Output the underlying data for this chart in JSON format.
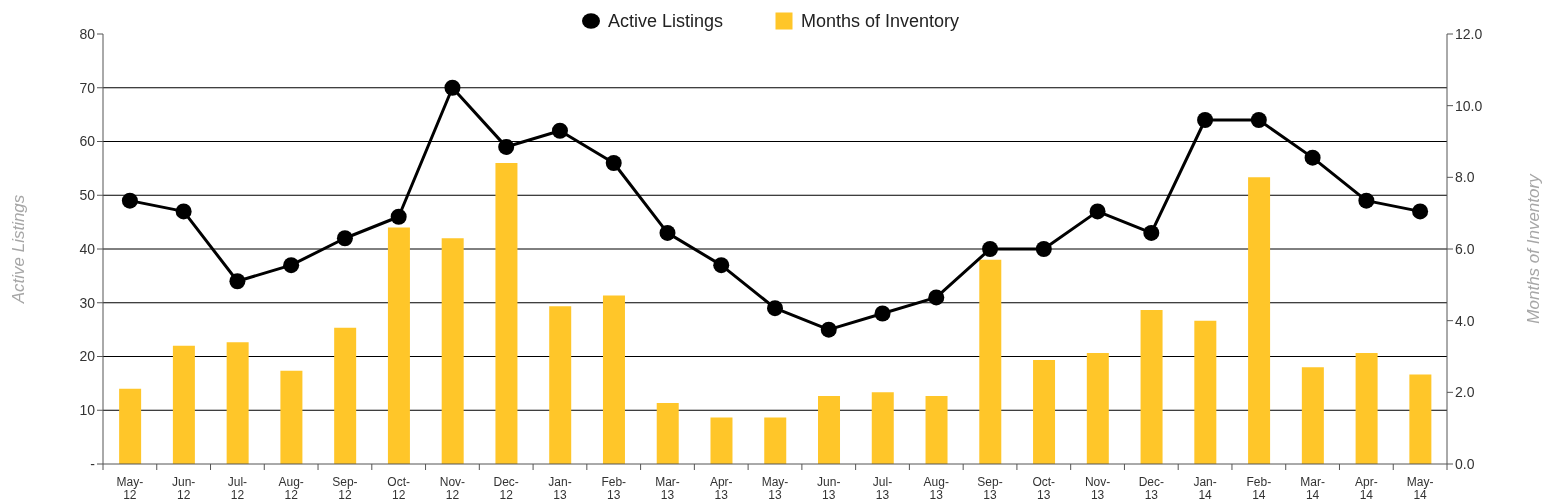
{
  "chart_data": {
    "type": "bar",
    "categories": [
      "May-12",
      "Jun-12",
      "Jul-12",
      "Aug-12",
      "Sep-12",
      "Oct-12",
      "Nov-12",
      "Dec-12",
      "Jan-13",
      "Feb-13",
      "Mar-13",
      "Apr-13",
      "May-13",
      "Jun-13",
      "Jul-13",
      "Aug-13",
      "Sep-13",
      "Oct-13",
      "Nov-13",
      "Dec-13",
      "Jan-14",
      "Feb-14",
      "Mar-14",
      "Apr-14",
      "May-14"
    ],
    "series": [
      {
        "name": "Active Listings",
        "type": "line",
        "color": "#000000",
        "values": [
          49,
          47,
          34,
          37,
          42,
          46,
          70,
          59,
          62,
          56,
          43,
          37,
          29,
          25,
          28,
          31,
          40,
          40,
          47,
          43,
          64,
          64,
          57,
          49,
          47
        ]
      },
      {
        "name": "Months of Inventory",
        "axis": "y2",
        "color": "#ffc629",
        "values": [
          2.1,
          3.3,
          3.4,
          2.6,
          3.8,
          6.6,
          6.3,
          8.4,
          4.4,
          4.7,
          1.7,
          1.3,
          1.3,
          1.9,
          2.0,
          1.9,
          5.7,
          2.9,
          3.1,
          4.3,
          4.0,
          8.0,
          2.7,
          3.1,
          2.5
        ]
      }
    ],
    "ylabel": "Active Listings",
    "y2label": "Months of Inventory",
    "ylim": [
      0,
      80
    ],
    "yticks": [
      {
        "value": 0,
        "label": "-"
      },
      10,
      20,
      30,
      40,
      50,
      60,
      70,
      80
    ],
    "y2lim": [
      0,
      12
    ],
    "y2ticks": [
      {
        "value": 0,
        "label": "0.0"
      },
      {
        "value": 2,
        "label": "2.0"
      },
      {
        "value": 4,
        "label": "4.0"
      },
      {
        "value": 6,
        "label": "6.0"
      },
      {
        "value": 8,
        "label": "8.0"
      },
      {
        "value": 10,
        "label": "10.0"
      },
      {
        "value": 12,
        "label": "12.0"
      }
    ],
    "grid": "y",
    "legend": "top",
    "marker": "circle",
    "line_style": "solid"
  }
}
